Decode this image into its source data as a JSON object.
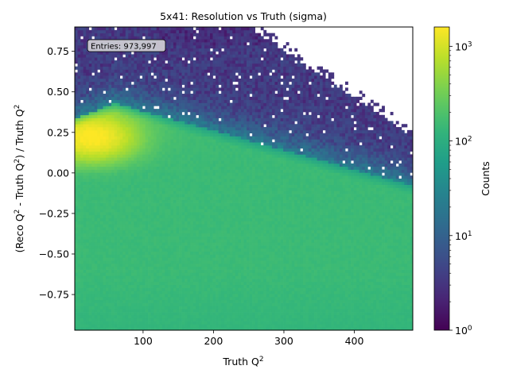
{
  "chart_data": {
    "type": "heatmap",
    "title": "5x41: Resolution vs Truth (sigma)",
    "xlabel": {
      "prefix": "Truth Q",
      "sup": "2"
    },
    "ylabel": {
      "parts": [
        "(Reco Q",
        "2",
        " - Truth Q",
        "2",
        ") / Truth Q",
        "2"
      ]
    },
    "xlim": [
      3,
      483
    ],
    "ylim": [
      -0.97,
      0.9
    ],
    "x_ticks": [
      100,
      200,
      300,
      400
    ],
    "y_ticks": [
      0.75,
      0.5,
      0.25,
      0.0,
      -0.25,
      -0.5,
      -0.75
    ],
    "x_tick_labels": [
      "100",
      "200",
      "300",
      "400"
    ],
    "y_tick_labels": [
      "0.75",
      "0.50",
      "0.25",
      "0.00",
      "−0.25",
      "−0.50",
      "−0.75"
    ],
    "colormap": "viridis",
    "color_scale": "log",
    "color_range": [
      1,
      1600
    ],
    "colorbar": {
      "label": "Counts",
      "ticks": [
        1,
        10,
        100,
        1000
      ],
      "tick_labels": [
        {
          "base": "10",
          "exp": "0"
        },
        {
          "base": "10",
          "exp": "1"
        },
        {
          "base": "10",
          "exp": "2"
        },
        {
          "base": "10",
          "exp": "3"
        }
      ]
    },
    "stats": {
      "label": "Entries: 973,997",
      "entries": 973997
    },
    "bins": {
      "nx": 120,
      "ny": 100
    },
    "description_of_density": {
      "peak_region": {
        "x": [
          5,
          70
        ],
        "y": [
          0.05,
          0.35
        ],
        "counts": 1600
      },
      "bulk_region": {
        "y_below": 0.0,
        "counts": 150
      },
      "halo_region": {
        "y": [
          0.4,
          0.9
        ],
        "counts": 3
      }
    }
  }
}
